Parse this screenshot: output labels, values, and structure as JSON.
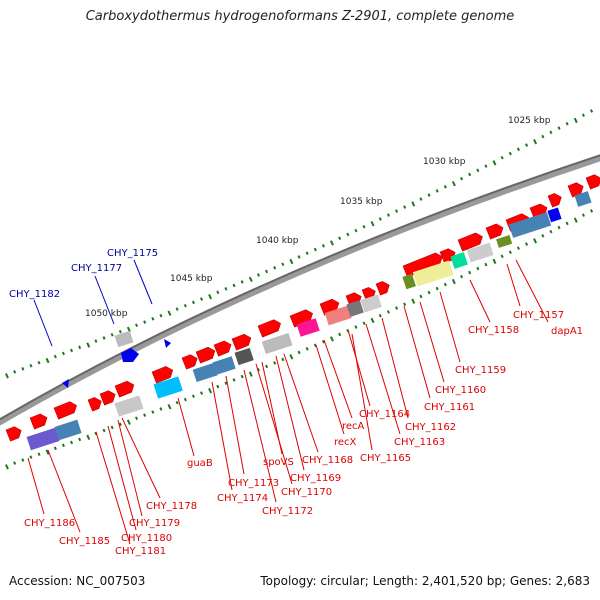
{
  "header": {
    "title": "Carboxydothermus hydrogenoformans Z-2901, complete genome"
  },
  "footer": {
    "accession": "Accession: NC_007503",
    "summary": "Topology: circular; Length: 2,401,520 bp; Genes: 2,683"
  },
  "colors": {
    "forward_gene": "#ff0000",
    "label_red": "#dd0000",
    "label_blue": "#000099",
    "backbone": "#777777",
    "tick": "#1a7a1a"
  },
  "scale_labels": [
    "1025 kbp",
    "1030 kbp",
    "1035 kbp",
    "1040 kbp",
    "1045 kbp",
    "1050 kbp"
  ],
  "gene_labels_top": [
    "CHY_1175",
    "CHY_1177",
    "CHY_1182"
  ],
  "gene_labels_bottom": [
    "dapA1",
    "CHY_1157",
    "CHY_1158",
    "CHY_1159",
    "CHY_1160",
    "CHY_1161",
    "CHY_1162",
    "CHY_1163",
    "CHY_1164",
    "CHY_1165",
    "recA",
    "recX",
    "CHY_1168",
    "CHY_1169",
    "spoVS",
    "CHY_1170",
    "CHY_1172",
    "CHY_1173",
    "CHY_1174",
    "guaB",
    "CHY_1178",
    "CHY_1179",
    "CHY_1180",
    "CHY_1181",
    "CHY_1185",
    "CHY_1186"
  ]
}
